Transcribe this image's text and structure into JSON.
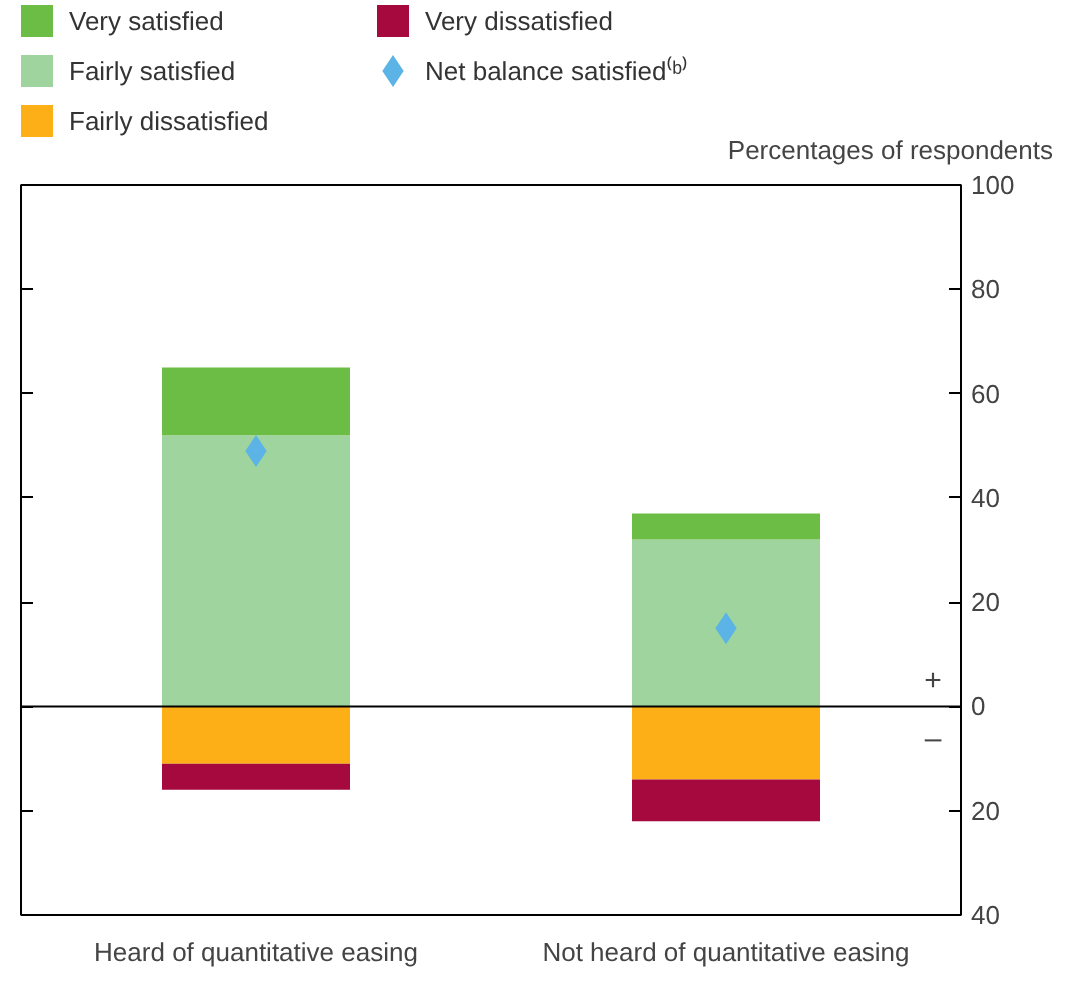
{
  "chart_data": {
    "type": "bar",
    "stacked": true,
    "ylabel": "Percentages of respondents",
    "categories": [
      "Heard of quantitative easing",
      "Not heard of quantitative easing"
    ],
    "series": [
      {
        "name": "Fairly satisfied",
        "color": "#9fd49e",
        "values": [
          52,
          32
        ]
      },
      {
        "name": "Very satisfied",
        "color": "#6cbd45",
        "values": [
          13,
          5
        ]
      },
      {
        "name": "Fairly dissatisfied",
        "color": "#fcaf17",
        "values": [
          -11,
          -14
        ]
      },
      {
        "name": "Very dissatisfied",
        "color": "#a6093d",
        "values": [
          -5,
          -8
        ]
      },
      {
        "name": "Net balance satisfied⁽ᵇ⁾",
        "type": "scatter",
        "marker": "diamond",
        "color": "#5bb4e5",
        "x": [
          "Heard of quantitative easing",
          "Not heard of quantitative easing"
        ],
        "values": [
          49,
          15
        ]
      }
    ],
    "ylim": [
      -40,
      100
    ],
    "yticks": [
      {
        "value": -40,
        "label": "40"
      },
      {
        "value": -20,
        "label": "20"
      },
      0,
      20,
      40,
      60,
      80,
      100
    ],
    "ref_lines": [
      {
        "axis": "y",
        "value": 0,
        "color": "#000000"
      }
    ],
    "annotations": [
      "+",
      "–"
    ],
    "legend": "top left",
    "grid": false
  }
}
